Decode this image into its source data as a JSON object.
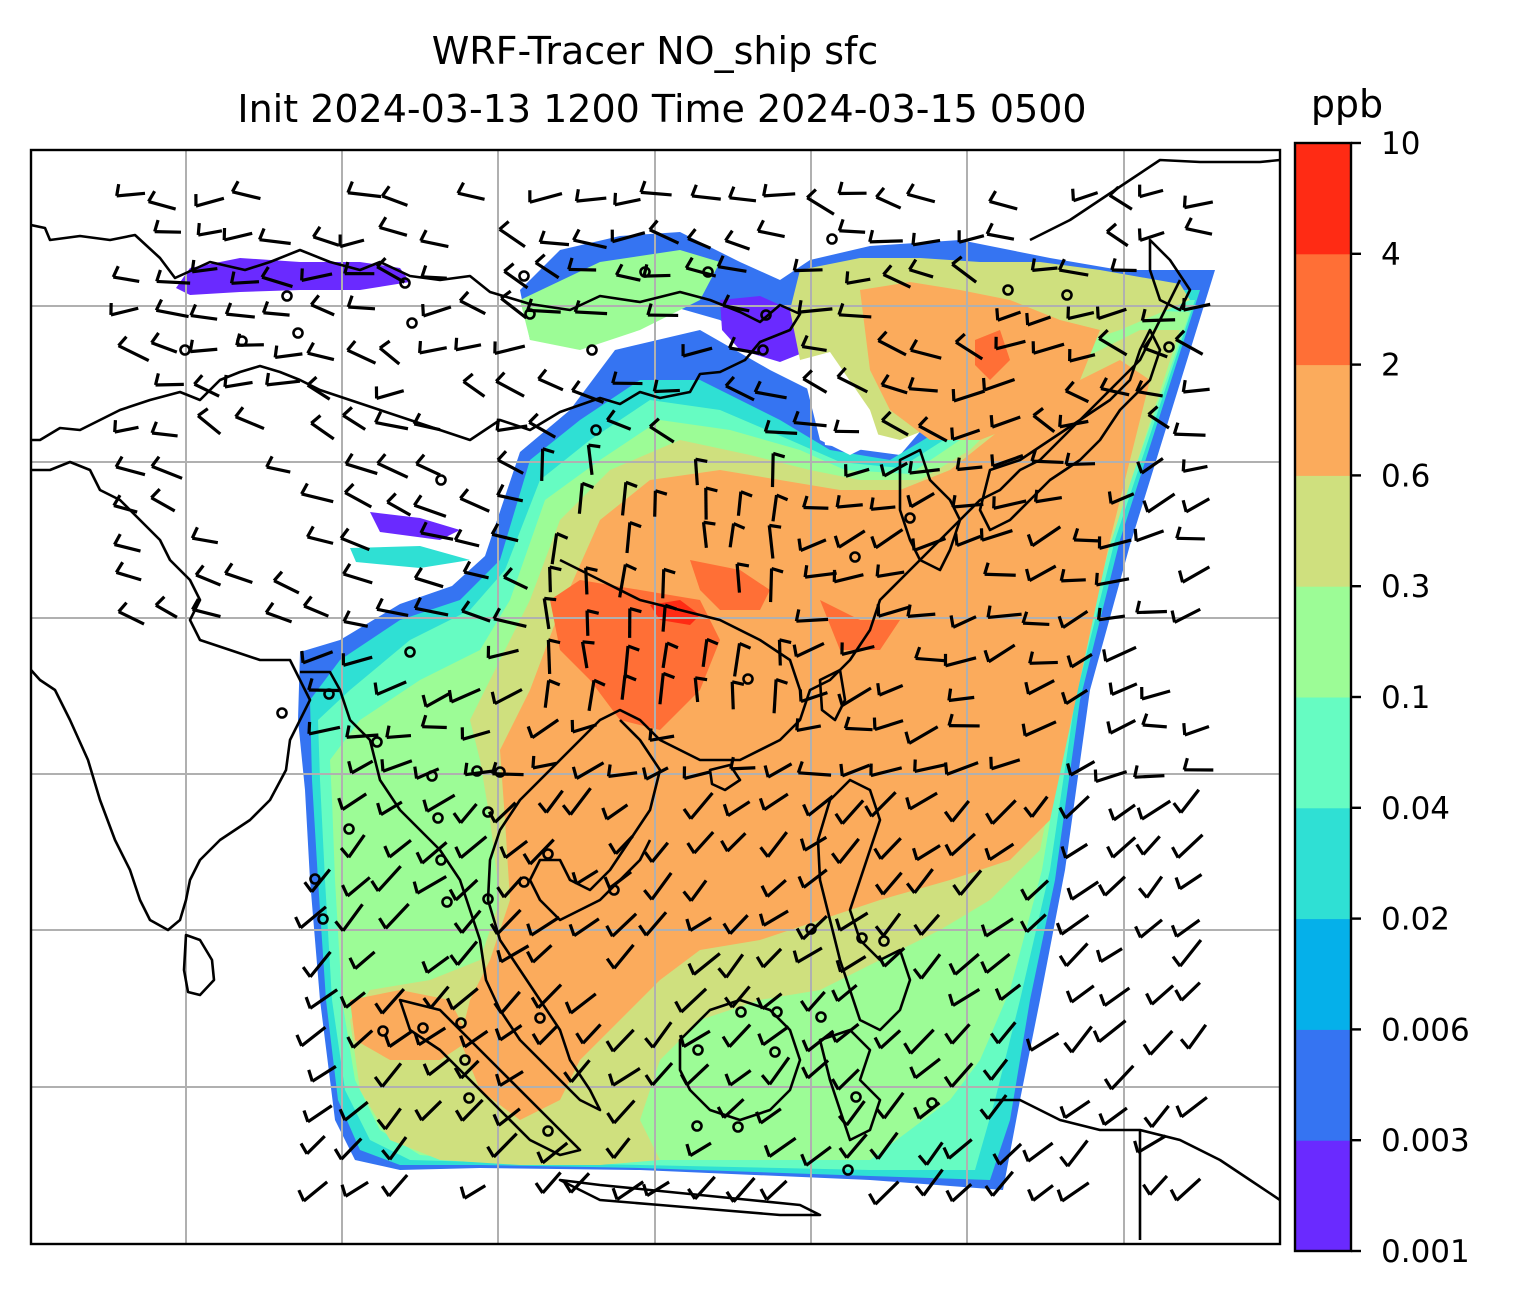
{
  "title": {
    "line1": "WRF-Tracer NO_ship sfc",
    "line2": "Init 2024-03-13 1200 Time 2024-03-15 0500"
  },
  "colorbar": {
    "unit": "ppb",
    "ticks": [
      "0.001",
      "0.003",
      "0.006",
      "0.02",
      "0.04",
      "0.1",
      "0.3",
      "0.6",
      "2",
      "4",
      "10"
    ],
    "colors": [
      "#6a2aff",
      "#3574f2",
      "#05b0ea",
      "#2fe0d4",
      "#66fcc2",
      "#9cfc96",
      "#cfe07e",
      "#fbab5c",
      "#ff6f36",
      "#ff2b14"
    ]
  },
  "map": {
    "features": [
      "coastlines",
      "gridlines",
      "wind-barbs",
      "concentration-field"
    ],
    "field": "NO_ship",
    "level": "sfc"
  }
}
